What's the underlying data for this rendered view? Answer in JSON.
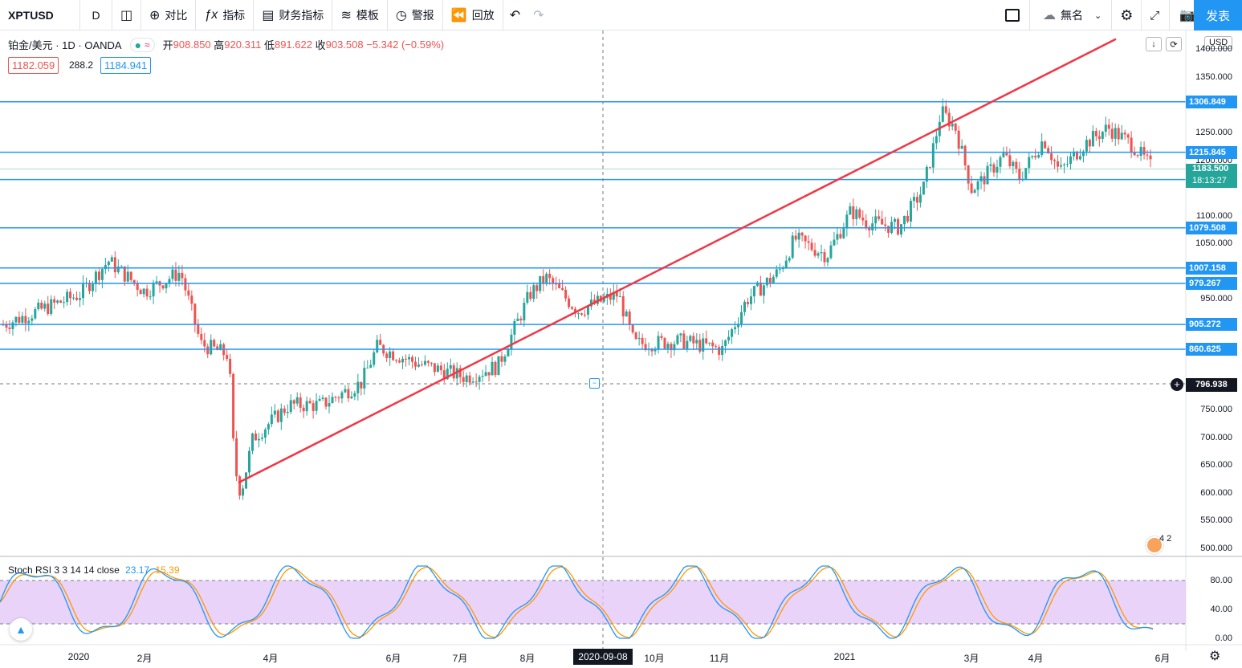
{
  "toolbar": {
    "symbol": "XPTUSD",
    "interval": "D",
    "compare": "对比",
    "indicators": "指标",
    "financials": "财务指标",
    "templates": "模板",
    "alert": "警报",
    "replay": "回放",
    "layout_name": "無名",
    "publish": "发表",
    "icons": {
      "candles": "candlestick-icon",
      "compare": "plus-circle-icon",
      "indicators": "function-icon",
      "financials": "bar-chart-icon",
      "templates": "template-icon",
      "alert": "alarm-clock-icon",
      "replay": "rewind-icon",
      "undo": "undo-icon",
      "redo": "redo-icon",
      "fullscreen": "fullscreen-icon",
      "settings": "gear-icon",
      "snapshot": "camera-icon",
      "cloud": "cloud-icon"
    }
  },
  "legend": {
    "title": "铂金/美元 · 1D · OANDA",
    "open_label": "开",
    "open": "908.850",
    "high_label": "高",
    "high": "920.311",
    "low_label": "低",
    "low": "891.622",
    "close_label": "收",
    "close": "903.508",
    "change": "−5.342 (−0.59%)",
    "sell": "1182.059",
    "spread": "288.2",
    "buy": "1184.941"
  },
  "price_axis": {
    "currency": "USD",
    "labels": [
      "1400.000",
      "1350.000",
      "1250.000",
      "1200.000",
      "1100.000",
      "1050.000",
      "950.000",
      "750.000",
      "700.000",
      "650.000",
      "600.000",
      "550.000",
      "500.000"
    ]
  },
  "levels": [
    "1306.849",
    "1215.845",
    "1166.731",
    "1079.508",
    "1007.158",
    "979.267",
    "905.272",
    "860.625"
  ],
  "current_price": "1183.500",
  "countdown": "18:13:27",
  "crosshair": {
    "price": "796.938",
    "date": "2020-09-08"
  },
  "time_axis": [
    "2020",
    "2月",
    "4月",
    "6月",
    "7月",
    "8月",
    "10月",
    "11月",
    "2021",
    "3月",
    "4月",
    "6月"
  ],
  "stoch": {
    "title": "Stoch RSI 3 3 14 14 close",
    "k": "23.17",
    "d": "15.39",
    "axis": [
      "80.00",
      "40.00",
      "0.00"
    ],
    "colors": {
      "k": "#2196f3",
      "d": "#ff9800",
      "band": "#e1c4f7"
    }
  },
  "chart_data": {
    "type": "candlestick",
    "title": "铂金/美元 · 1D · OANDA",
    "ylim": [
      490,
      1430
    ],
    "trendline": {
      "from": [
        "2020-03-20",
        620
      ],
      "to": [
        "2021-05-25",
        1420
      ],
      "color": "#f23645"
    },
    "horizontal_levels": [
      1306.849,
      1215.845,
      1166.731,
      1079.508,
      1007.158,
      979.267,
      905.272,
      860.625
    ],
    "monthly_close": {
      "x": [
        "2019-12",
        "2020-01",
        "2020-02",
        "2020-03",
        "2020-04",
        "2020-05",
        "2020-06",
        "2020-07",
        "2020-08",
        "2020-09",
        "2020-10",
        "2020-11",
        "2020-12",
        "2021-01",
        "2021-02",
        "2021-03",
        "2021-04",
        "2021-05"
      ],
      "values": [
        930,
        970,
        1010,
        730,
        760,
        830,
        810,
        850,
        930,
        910,
        860,
        930,
        1040,
        1080,
        1280,
        1180,
        1220,
        1183.5
      ]
    },
    "colors": {
      "up": "#26a69a",
      "down": "#ef5350",
      "level": "#2196f3"
    }
  }
}
